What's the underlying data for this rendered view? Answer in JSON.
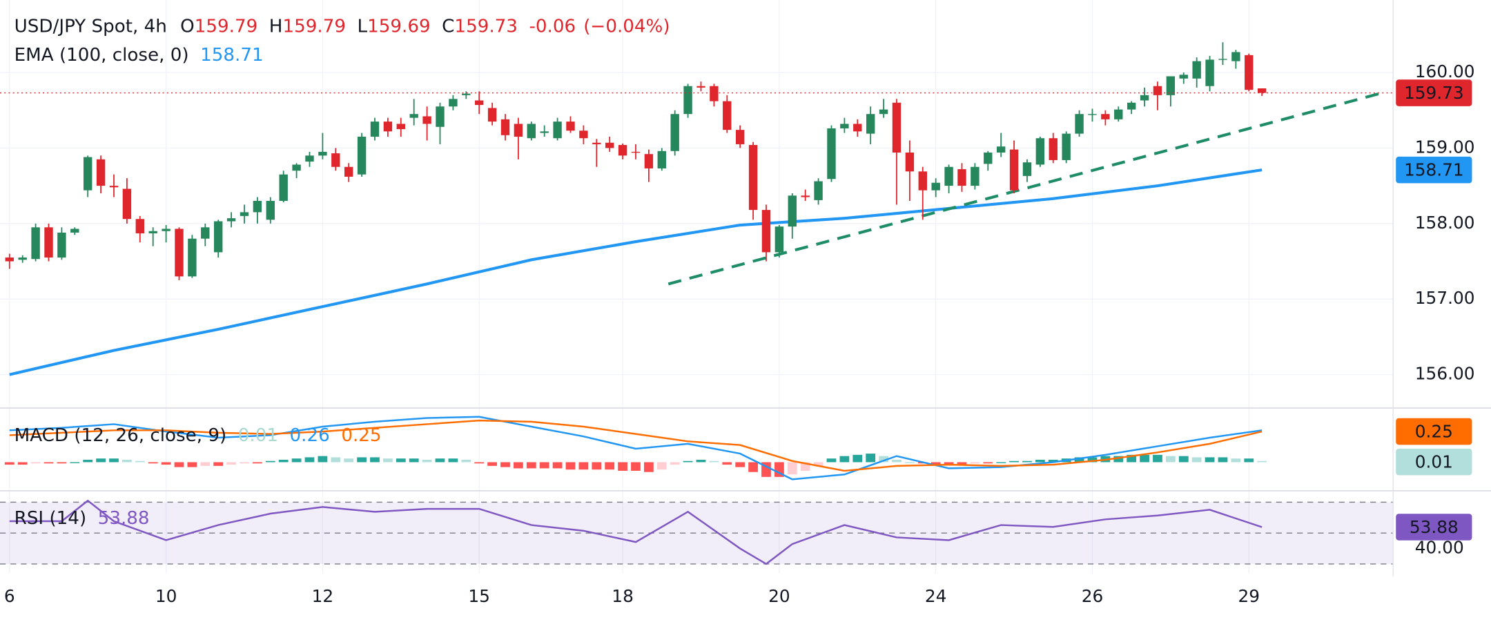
{
  "chart_data": [
    {
      "type": "candlestick",
      "title": "USD/JPY Spot, 4h",
      "ohlc_prefixes": [
        "O",
        "H",
        "L",
        "C"
      ],
      "change": {
        "value": -0.06,
        "label": "-0.06"
      },
      "change_pct": {
        "value": -0.04,
        "label": "(−0.04%)"
      },
      "up_color": "#26875c",
      "down_color": "#e0262d",
      "categories": [
        "6",
        null,
        null,
        null,
        null,
        null,
        null,
        null,
        null,
        null,
        null,
        null,
        "10",
        null,
        null,
        null,
        null,
        null,
        null,
        null,
        null,
        null,
        null,
        null,
        "12",
        null,
        null,
        null,
        null,
        null,
        null,
        null,
        null,
        null,
        null,
        null,
        "15",
        null,
        null,
        null,
        null,
        null,
        null,
        null,
        null,
        null,
        null,
        "18",
        null,
        null,
        null,
        null,
        null,
        null,
        null,
        null,
        null,
        null,
        null,
        "20",
        null,
        null,
        null,
        null,
        null,
        null,
        null,
        null,
        null,
        null,
        null,
        "24",
        null,
        null,
        null,
        null,
        null,
        null,
        null,
        null,
        null,
        null,
        null,
        "26",
        null,
        null,
        null,
        null,
        null,
        null,
        null,
        null,
        null,
        null,
        null,
        "29",
        null
      ],
      "open": [
        157.55,
        157.52,
        157.53,
        157.95,
        157.55,
        157.88,
        158.44,
        158.85,
        158.5,
        158.46,
        158.06,
        157.87,
        157.9,
        157.93,
        157.3,
        157.8,
        157.62,
        158.03,
        158.1,
        158.15,
        158.05,
        158.3,
        158.7,
        158.82,
        158.9,
        158.93,
        158.75,
        158.65,
        159.15,
        159.35,
        159.32,
        159.4,
        159.42,
        159.28,
        159.55,
        159.7,
        159.63,
        159.53,
        159.38,
        159.32,
        159.13,
        159.2,
        159.13,
        159.35,
        159.23,
        159.07,
        159.07,
        159.04,
        158.95,
        158.92,
        158.73,
        158.96,
        159.45,
        159.82,
        159.82,
        159.62,
        159.24,
        159.04,
        158.18,
        157.62,
        157.96,
        158.37,
        158.31,
        158.59,
        159.26,
        159.32,
        159.19,
        159.45,
        159.6,
        158.94,
        158.69,
        158.44,
        158.5,
        158.72,
        158.5,
        158.79,
        158.94,
        158.98,
        158.63,
        158.78,
        159.13,
        158.84,
        159.19,
        159.45,
        159.45,
        159.38,
        159.51,
        159.63,
        159.82,
        159.7,
        159.92,
        159.92,
        159.82,
        160.17,
        160.15,
        160.23,
        159.79
      ],
      "high": [
        157.6,
        157.58,
        158.0,
        158.0,
        157.95,
        157.95,
        158.9,
        158.9,
        158.65,
        158.6,
        158.1,
        157.95,
        157.98,
        157.95,
        157.85,
        158.0,
        158.05,
        158.15,
        158.25,
        158.35,
        158.35,
        158.7,
        158.8,
        158.95,
        159.2,
        159.0,
        158.8,
        159.2,
        159.4,
        159.4,
        159.4,
        159.65,
        159.55,
        159.6,
        159.7,
        159.75,
        159.75,
        159.6,
        159.45,
        159.4,
        159.35,
        159.3,
        159.4,
        159.42,
        159.3,
        159.12,
        159.15,
        159.06,
        159.05,
        158.98,
        159.0,
        159.5,
        159.85,
        159.88,
        159.85,
        159.7,
        159.3,
        159.08,
        158.25,
        157.98,
        158.4,
        158.45,
        158.6,
        159.3,
        159.4,
        159.38,
        159.55,
        159.65,
        159.65,
        159.1,
        158.75,
        158.6,
        158.78,
        158.8,
        158.8,
        158.96,
        159.2,
        159.1,
        158.85,
        159.15,
        159.2,
        159.22,
        159.5,
        159.52,
        159.5,
        159.55,
        159.62,
        159.8,
        159.88,
        159.95,
        160.0,
        160.2,
        160.22,
        160.4,
        160.3,
        160.25,
        159.79
      ],
      "low": [
        157.4,
        157.48,
        157.5,
        157.5,
        157.52,
        157.85,
        158.35,
        158.4,
        158.35,
        158.0,
        157.75,
        157.7,
        157.75,
        157.25,
        157.28,
        157.7,
        157.55,
        157.95,
        158.0,
        158.0,
        158.0,
        158.28,
        158.6,
        158.75,
        158.85,
        158.7,
        158.55,
        158.62,
        159.1,
        159.15,
        159.15,
        159.3,
        159.1,
        159.05,
        159.5,
        159.65,
        159.45,
        159.3,
        159.1,
        158.85,
        159.1,
        159.15,
        159.1,
        159.2,
        159.05,
        158.75,
        158.95,
        158.85,
        158.85,
        158.55,
        158.7,
        158.9,
        159.4,
        159.75,
        159.55,
        159.2,
        159.0,
        158.05,
        157.5,
        157.55,
        157.8,
        158.3,
        158.25,
        158.55,
        159.2,
        159.15,
        159.05,
        159.4,
        158.25,
        158.3,
        158.05,
        158.35,
        158.4,
        158.42,
        158.45,
        158.7,
        158.88,
        158.4,
        158.55,
        158.75,
        158.8,
        158.8,
        159.15,
        159.35,
        159.3,
        159.35,
        159.45,
        159.55,
        159.5,
        159.55,
        159.85,
        159.8,
        159.75,
        160.1,
        160.05,
        159.75,
        159.69
      ],
      "close": [
        157.5,
        157.55,
        157.95,
        157.55,
        157.88,
        157.93,
        158.88,
        158.5,
        158.48,
        158.06,
        157.87,
        157.9,
        157.93,
        157.3,
        157.8,
        157.95,
        158.03,
        158.07,
        158.15,
        158.3,
        158.3,
        158.65,
        158.78,
        158.9,
        158.95,
        158.75,
        158.62,
        159.15,
        159.35,
        159.22,
        159.25,
        159.45,
        159.32,
        159.55,
        159.65,
        159.72,
        159.57,
        159.35,
        159.17,
        159.15,
        159.32,
        159.22,
        159.35,
        159.23,
        159.13,
        159.05,
        159.0,
        158.9,
        158.94,
        158.73,
        158.96,
        159.45,
        159.82,
        159.8,
        159.62,
        159.24,
        159.05,
        158.18,
        157.62,
        157.96,
        158.37,
        158.35,
        158.56,
        159.26,
        159.32,
        159.22,
        159.45,
        159.51,
        158.94,
        158.69,
        158.44,
        158.54,
        158.75,
        158.5,
        158.75,
        158.94,
        159.02,
        158.44,
        158.81,
        159.13,
        158.84,
        159.19,
        159.45,
        159.45,
        159.38,
        159.51,
        159.6,
        159.7,
        159.7,
        159.95,
        159.97,
        160.15,
        160.17,
        160.18,
        160.27,
        159.77,
        159.73
      ],
      "lines": [
        {
          "name": "EMA (100, close, 0)",
          "color": "#2196f3",
          "x": [
            0,
            8,
            16,
            24,
            32,
            40,
            48,
            56,
            64,
            72,
            80,
            88,
            96
          ],
          "values": [
            156.0,
            156.32,
            156.6,
            156.9,
            157.2,
            157.52,
            157.76,
            157.98,
            158.07,
            158.2,
            158.33,
            158.5,
            158.71
          ]
        }
      ],
      "trendlines": [
        {
          "color": "#1e8c67",
          "x": [
            50.5,
            105
          ],
          "y": [
            157.2,
            159.72
          ]
        }
      ],
      "xlim": [
        -0.73,
        106.05
      ],
      "ylim": [
        155.57,
        160.96
      ],
      "yticks": [
        {
          "value": 156,
          "label": "156.00"
        },
        {
          "value": 157,
          "label": "157.00"
        },
        {
          "value": 158,
          "label": "158.00"
        },
        {
          "value": 159,
          "label": "159.00"
        },
        {
          "value": 160,
          "label": "160.00"
        }
      ],
      "grid": true
    },
    {
      "type": "macd",
      "title": "MACD (12, 26, close, 9)",
      "x": [
        0,
        4,
        8,
        12,
        16,
        20,
        24,
        28,
        32,
        36,
        40,
        44,
        48,
        52,
        56,
        60,
        64,
        68,
        72,
        76,
        80,
        84,
        88,
        92,
        96
      ],
      "series": [
        {
          "color": "#2196f3",
          "values": [
            0.26,
            0.28,
            0.31,
            0.25,
            0.2,
            0.22,
            0.29,
            0.33,
            0.36,
            0.37,
            0.29,
            0.21,
            0.11,
            0.15,
            0.07,
            -0.14,
            -0.1,
            0.05,
            -0.05,
            -0.04,
            0.0,
            0.06,
            0.13,
            0.2,
            0.26
          ]
        },
        {
          "color": "#ff6d00",
          "values": [
            0.22,
            0.24,
            0.26,
            0.26,
            0.24,
            0.23,
            0.25,
            0.28,
            0.31,
            0.34,
            0.33,
            0.29,
            0.23,
            0.17,
            0.14,
            0.01,
            -0.07,
            -0.03,
            -0.02,
            -0.03,
            -0.02,
            0.02,
            0.08,
            0.15,
            0.25
          ]
        }
      ],
      "histogram": {
        "colors": {
          "up": "#26a69a",
          "up_fading": "#b2dfdb",
          "down": "#ff5252",
          "down_fading": "#ffcdd2"
        },
        "values": [
          -0.02,
          -0.02,
          -0.01,
          -0.01,
          -0.01,
          0.0,
          0.02,
          0.03,
          0.03,
          0.02,
          0.01,
          -0.01,
          -0.02,
          -0.04,
          -0.04,
          -0.03,
          -0.03,
          -0.02,
          -0.01,
          -0.01,
          0.01,
          0.02,
          0.03,
          0.04,
          0.05,
          0.04,
          0.03,
          0.04,
          0.04,
          0.03,
          0.03,
          0.03,
          0.02,
          0.03,
          0.03,
          0.02,
          -0.01,
          -0.03,
          -0.04,
          -0.05,
          -0.05,
          -0.05,
          -0.05,
          -0.06,
          -0.06,
          -0.06,
          -0.06,
          -0.07,
          -0.07,
          -0.08,
          -0.06,
          -0.02,
          0.01,
          0.02,
          0.01,
          -0.02,
          -0.04,
          -0.08,
          -0.12,
          -0.12,
          -0.1,
          -0.07,
          -0.03,
          0.03,
          0.05,
          0.06,
          0.07,
          0.05,
          0.02,
          0.0,
          -0.01,
          -0.02,
          -0.02,
          -0.02,
          -0.01,
          -0.01,
          0.0,
          0.01,
          0.01,
          0.02,
          0.02,
          0.03,
          0.04,
          0.04,
          0.05,
          0.05,
          0.06,
          0.06,
          0.06,
          0.05,
          0.05,
          0.04,
          0.04,
          0.04,
          0.03,
          0.03,
          0.01
        ]
      },
      "ylim": [
        -0.225,
        0.434
      ]
    },
    {
      "type": "rsi",
      "title": "RSI (14)",
      "color": "#7e57c2",
      "x": [
        0,
        4,
        6,
        8,
        12,
        16,
        20,
        24,
        28,
        32,
        36,
        40,
        44,
        48,
        52,
        56,
        58,
        60,
        64,
        68,
        72,
        76,
        80,
        84,
        88,
        92,
        96
      ],
      "values": [
        57.7,
        57.7,
        71,
        57.7,
        45.4,
        55.2,
        62.6,
        66.9,
        63.8,
        65.7,
        65.7,
        55.2,
        51.5,
        44.2,
        63.8,
        40,
        30,
        42.9,
        55.2,
        47.2,
        45.4,
        55.2,
        54,
        58.9,
        61.4,
        65.1,
        53.88
      ],
      "levels": [
        30,
        50,
        70
      ],
      "band": [
        30,
        70
      ],
      "ylim": [
        23.8,
        76.2
      ],
      "yticks": [
        {
          "value": 40,
          "label": "40.00"
        }
      ]
    }
  ]
}
